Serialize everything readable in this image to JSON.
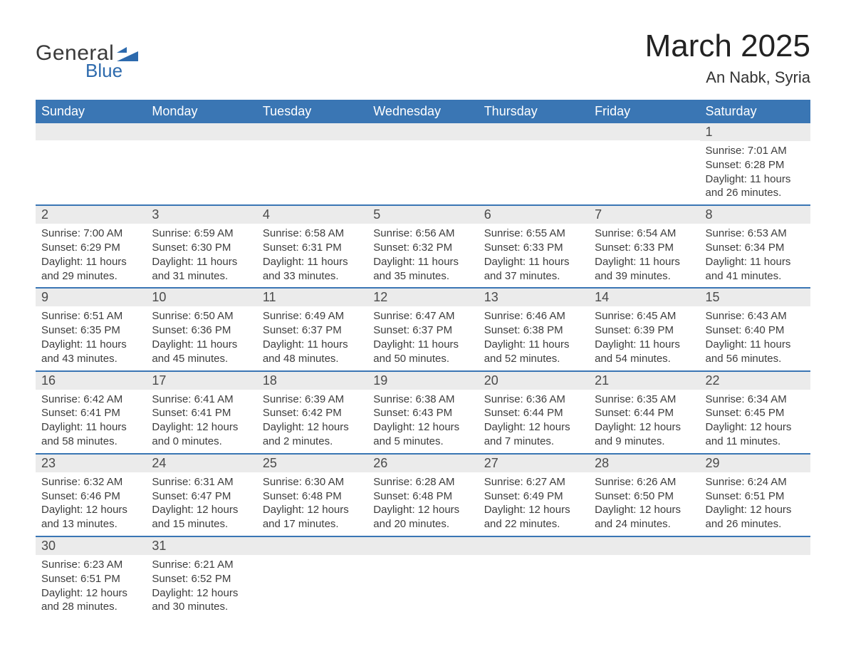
{
  "brand": {
    "word1": "General",
    "word2": "Blue",
    "triangle_color": "#2d6aad"
  },
  "title": "March 2025",
  "location": "An Nabk, Syria",
  "colors": {
    "header_bg": "#3a76b4",
    "header_text": "#ffffff",
    "daynum_bg": "#ebebeb",
    "row_divider": "#3a76b4",
    "body_text": "#3d3d3d"
  },
  "weekdays": [
    "Sunday",
    "Monday",
    "Tuesday",
    "Wednesday",
    "Thursday",
    "Friday",
    "Saturday"
  ],
  "weeks": [
    [
      null,
      null,
      null,
      null,
      null,
      null,
      {
        "n": "1",
        "sunrise": "7:01 AM",
        "sunset": "6:28 PM",
        "day_h": "11",
        "day_m": "26"
      }
    ],
    [
      {
        "n": "2",
        "sunrise": "7:00 AM",
        "sunset": "6:29 PM",
        "day_h": "11",
        "day_m": "29"
      },
      {
        "n": "3",
        "sunrise": "6:59 AM",
        "sunset": "6:30 PM",
        "day_h": "11",
        "day_m": "31"
      },
      {
        "n": "4",
        "sunrise": "6:58 AM",
        "sunset": "6:31 PM",
        "day_h": "11",
        "day_m": "33"
      },
      {
        "n": "5",
        "sunrise": "6:56 AM",
        "sunset": "6:32 PM",
        "day_h": "11",
        "day_m": "35"
      },
      {
        "n": "6",
        "sunrise": "6:55 AM",
        "sunset": "6:33 PM",
        "day_h": "11",
        "day_m": "37"
      },
      {
        "n": "7",
        "sunrise": "6:54 AM",
        "sunset": "6:33 PM",
        "day_h": "11",
        "day_m": "39"
      },
      {
        "n": "8",
        "sunrise": "6:53 AM",
        "sunset": "6:34 PM",
        "day_h": "11",
        "day_m": "41"
      }
    ],
    [
      {
        "n": "9",
        "sunrise": "6:51 AM",
        "sunset": "6:35 PM",
        "day_h": "11",
        "day_m": "43"
      },
      {
        "n": "10",
        "sunrise": "6:50 AM",
        "sunset": "6:36 PM",
        "day_h": "11",
        "day_m": "45"
      },
      {
        "n": "11",
        "sunrise": "6:49 AM",
        "sunset": "6:37 PM",
        "day_h": "11",
        "day_m": "48"
      },
      {
        "n": "12",
        "sunrise": "6:47 AM",
        "sunset": "6:37 PM",
        "day_h": "11",
        "day_m": "50"
      },
      {
        "n": "13",
        "sunrise": "6:46 AM",
        "sunset": "6:38 PM",
        "day_h": "11",
        "day_m": "52"
      },
      {
        "n": "14",
        "sunrise": "6:45 AM",
        "sunset": "6:39 PM",
        "day_h": "11",
        "day_m": "54"
      },
      {
        "n": "15",
        "sunrise": "6:43 AM",
        "sunset": "6:40 PM",
        "day_h": "11",
        "day_m": "56"
      }
    ],
    [
      {
        "n": "16",
        "sunrise": "6:42 AM",
        "sunset": "6:41 PM",
        "day_h": "11",
        "day_m": "58"
      },
      {
        "n": "17",
        "sunrise": "6:41 AM",
        "sunset": "6:41 PM",
        "day_h": "12",
        "day_m": "0"
      },
      {
        "n": "18",
        "sunrise": "6:39 AM",
        "sunset": "6:42 PM",
        "day_h": "12",
        "day_m": "2"
      },
      {
        "n": "19",
        "sunrise": "6:38 AM",
        "sunset": "6:43 PM",
        "day_h": "12",
        "day_m": "5"
      },
      {
        "n": "20",
        "sunrise": "6:36 AM",
        "sunset": "6:44 PM",
        "day_h": "12",
        "day_m": "7"
      },
      {
        "n": "21",
        "sunrise": "6:35 AM",
        "sunset": "6:44 PM",
        "day_h": "12",
        "day_m": "9"
      },
      {
        "n": "22",
        "sunrise": "6:34 AM",
        "sunset": "6:45 PM",
        "day_h": "12",
        "day_m": "11"
      }
    ],
    [
      {
        "n": "23",
        "sunrise": "6:32 AM",
        "sunset": "6:46 PM",
        "day_h": "12",
        "day_m": "13"
      },
      {
        "n": "24",
        "sunrise": "6:31 AM",
        "sunset": "6:47 PM",
        "day_h": "12",
        "day_m": "15"
      },
      {
        "n": "25",
        "sunrise": "6:30 AM",
        "sunset": "6:48 PM",
        "day_h": "12",
        "day_m": "17"
      },
      {
        "n": "26",
        "sunrise": "6:28 AM",
        "sunset": "6:48 PM",
        "day_h": "12",
        "day_m": "20"
      },
      {
        "n": "27",
        "sunrise": "6:27 AM",
        "sunset": "6:49 PM",
        "day_h": "12",
        "day_m": "22"
      },
      {
        "n": "28",
        "sunrise": "6:26 AM",
        "sunset": "6:50 PM",
        "day_h": "12",
        "day_m": "24"
      },
      {
        "n": "29",
        "sunrise": "6:24 AM",
        "sunset": "6:51 PM",
        "day_h": "12",
        "day_m": "26"
      }
    ],
    [
      {
        "n": "30",
        "sunrise": "6:23 AM",
        "sunset": "6:51 PM",
        "day_h": "12",
        "day_m": "28"
      },
      {
        "n": "31",
        "sunrise": "6:21 AM",
        "sunset": "6:52 PM",
        "day_h": "12",
        "day_m": "30"
      },
      null,
      null,
      null,
      null,
      null
    ]
  ],
  "labels": {
    "sunrise": "Sunrise:",
    "sunset": "Sunset:",
    "daylight_prefix": "Daylight:",
    "hours_word": "hours",
    "and_word": "and",
    "minutes_word": "minutes."
  }
}
